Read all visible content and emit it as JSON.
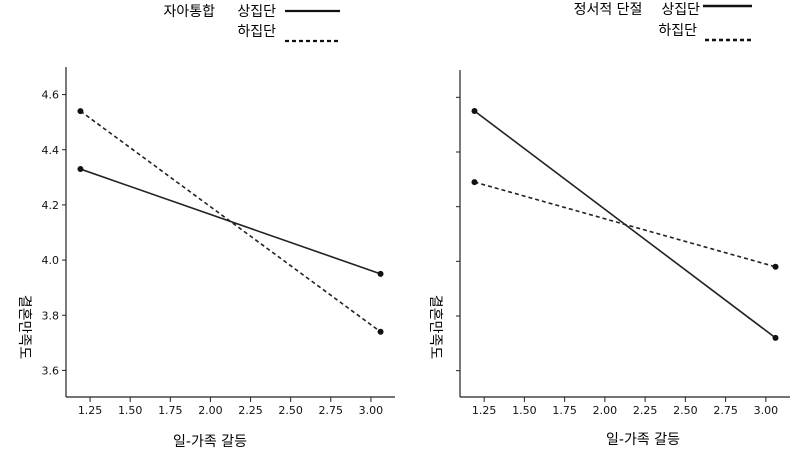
{
  "chart_data": [
    {
      "type": "line",
      "xlabel": "일-가족 갈등",
      "ylabel": "결혼만족도",
      "xlim": [
        1.1,
        3.15
      ],
      "ylim": [
        3.5,
        4.7
      ],
      "xticks": [
        1.25,
        1.5,
        1.75,
        2.0,
        2.25,
        2.5,
        2.75,
        3.0
      ],
      "xtick_labels": [
        "1.25",
        "1.50",
        "1.75",
        "2.00",
        "2.25",
        "2.50",
        "2.75",
        "3.00"
      ],
      "yticks": [
        3.6,
        3.8,
        4.0,
        4.2,
        4.4,
        4.6
      ],
      "ytick_labels": [
        "3.6",
        "3.8",
        "4.0",
        "4.2",
        "4.4",
        "4.6"
      ],
      "legend": {
        "title": "자아통합",
        "placement": "top-right"
      },
      "series": [
        {
          "name": "상집단",
          "style": "solid",
          "x": [
            1.19,
            3.06
          ],
          "y": [
            4.33,
            3.95
          ]
        },
        {
          "name": "하집단",
          "style": "dashed",
          "x": [
            1.19,
            3.06
          ],
          "y": [
            4.54,
            3.74
          ]
        }
      ]
    },
    {
      "type": "line",
      "xlabel": "일-가족 갈등",
      "ylabel": "결혼만족도",
      "xlim": [
        1.1,
        3.15
      ],
      "ylim": [
        3.5,
        4.7
      ],
      "xticks": [
        1.25,
        1.5,
        1.75,
        2.0,
        2.25,
        2.5,
        2.75,
        3.0
      ],
      "xtick_labels": [
        "1.25",
        "1.50",
        "1.75",
        "2.00",
        "2.25",
        "2.50",
        "2.75",
        "3.00"
      ],
      "yticks": [
        3.6,
        3.8,
        4.0,
        4.2,
        4.4,
        4.6
      ],
      "ytick_labels": [],
      "legend": {
        "title": "정서적 단절",
        "placement": "top-right"
      },
      "series": [
        {
          "name": "상집단",
          "style": "solid",
          "x": [
            1.19,
            3.06
          ],
          "y": [
            4.55,
            3.72
          ]
        },
        {
          "name": "하집단",
          "style": "dashed",
          "x": [
            1.19,
            3.06
          ],
          "y": [
            4.29,
            3.98
          ]
        }
      ]
    }
  ]
}
